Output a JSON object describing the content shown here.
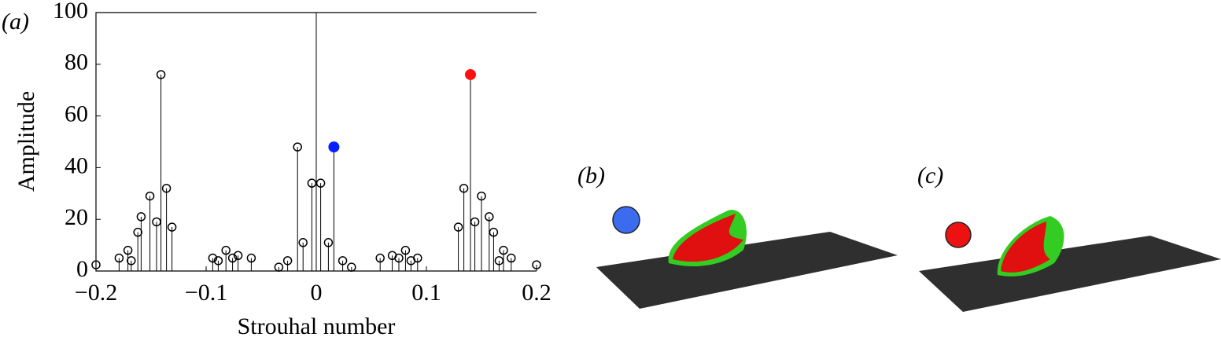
{
  "chart_data": {
    "type": "stem",
    "panel_label": "(a)",
    "xlabel": "Strouhal number",
    "ylabel": "Amplitude",
    "xlim": [
      -0.2,
      0.2
    ],
    "ylim": [
      0,
      100
    ],
    "xticks": [
      {
        "value": -0.2,
        "label": "−0.2"
      },
      {
        "value": -0.1,
        "label": "−0.1"
      },
      0,
      0.1,
      0.2
    ],
    "yticks": [
      0,
      20,
      40,
      60,
      80,
      100
    ],
    "color": "#000000",
    "x": [
      -0.2,
      -0.179,
      -0.171,
      -0.168,
      -0.162,
      -0.159,
      -0.151,
      -0.145,
      -0.141,
      -0.136,
      -0.131,
      -0.094,
      -0.089,
      -0.082,
      -0.076,
      -0.071,
      -0.059,
      -0.034,
      -0.026,
      -0.017,
      -0.012,
      -0.004,
      0.004,
      0.011,
      0.024,
      0.032,
      0.058,
      0.069,
      0.075,
      0.081,
      0.086,
      0.092,
      0.129,
      0.134,
      0.144,
      0.15,
      0.157,
      0.161,
      0.166,
      0.17,
      0.177,
      0.2
    ],
    "values": [
      2.4,
      5,
      8,
      4,
      15,
      21,
      29,
      19,
      76,
      32,
      17,
      5,
      4,
      8,
      5,
      6,
      5,
      1.5,
      4,
      48,
      11,
      34,
      34,
      11,
      4,
      1.5,
      5,
      6,
      5,
      8,
      4,
      5,
      17,
      32,
      19,
      29,
      21,
      15,
      4,
      8,
      5,
      2.4
    ],
    "highlights": {
      "x": [
        0.016,
        0.14
      ],
      "values": [
        48,
        76
      ],
      "colors": [
        "#0a1eff",
        "#ff1010"
      ]
    },
    "center_line": {
      "x": 0,
      "value": 100
    }
  },
  "panels": [
    {
      "label": "(b)"
    },
    {
      "label": "(c)"
    }
  ]
}
